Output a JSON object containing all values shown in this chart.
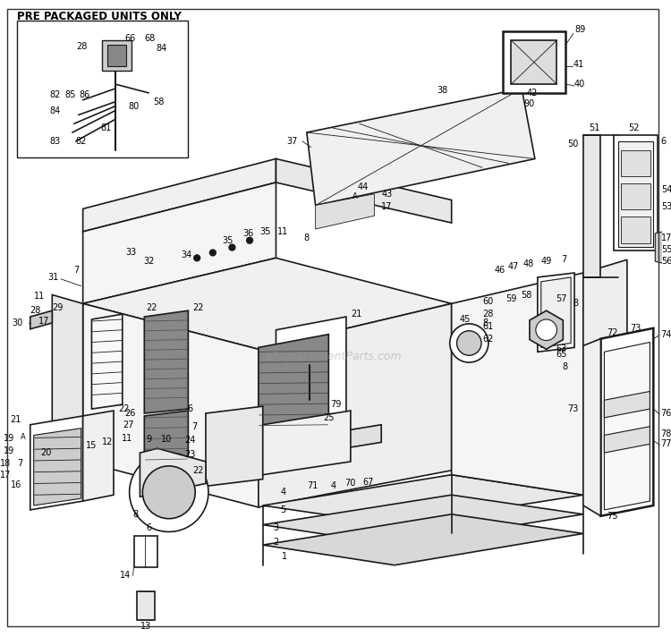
{
  "bg_color": "#ffffff",
  "line_color": "#1a1a1a",
  "lw_main": 1.2,
  "lw_thin": 0.6,
  "lw_thick": 1.8,
  "label_fs": 7.0,
  "inset_label": "PRE PACKAGED UNITS ONLY",
  "watermark": "eReplacementParts.com",
  "fig_w": 7.5,
  "fig_h": 7.12,
  "dpi": 100
}
